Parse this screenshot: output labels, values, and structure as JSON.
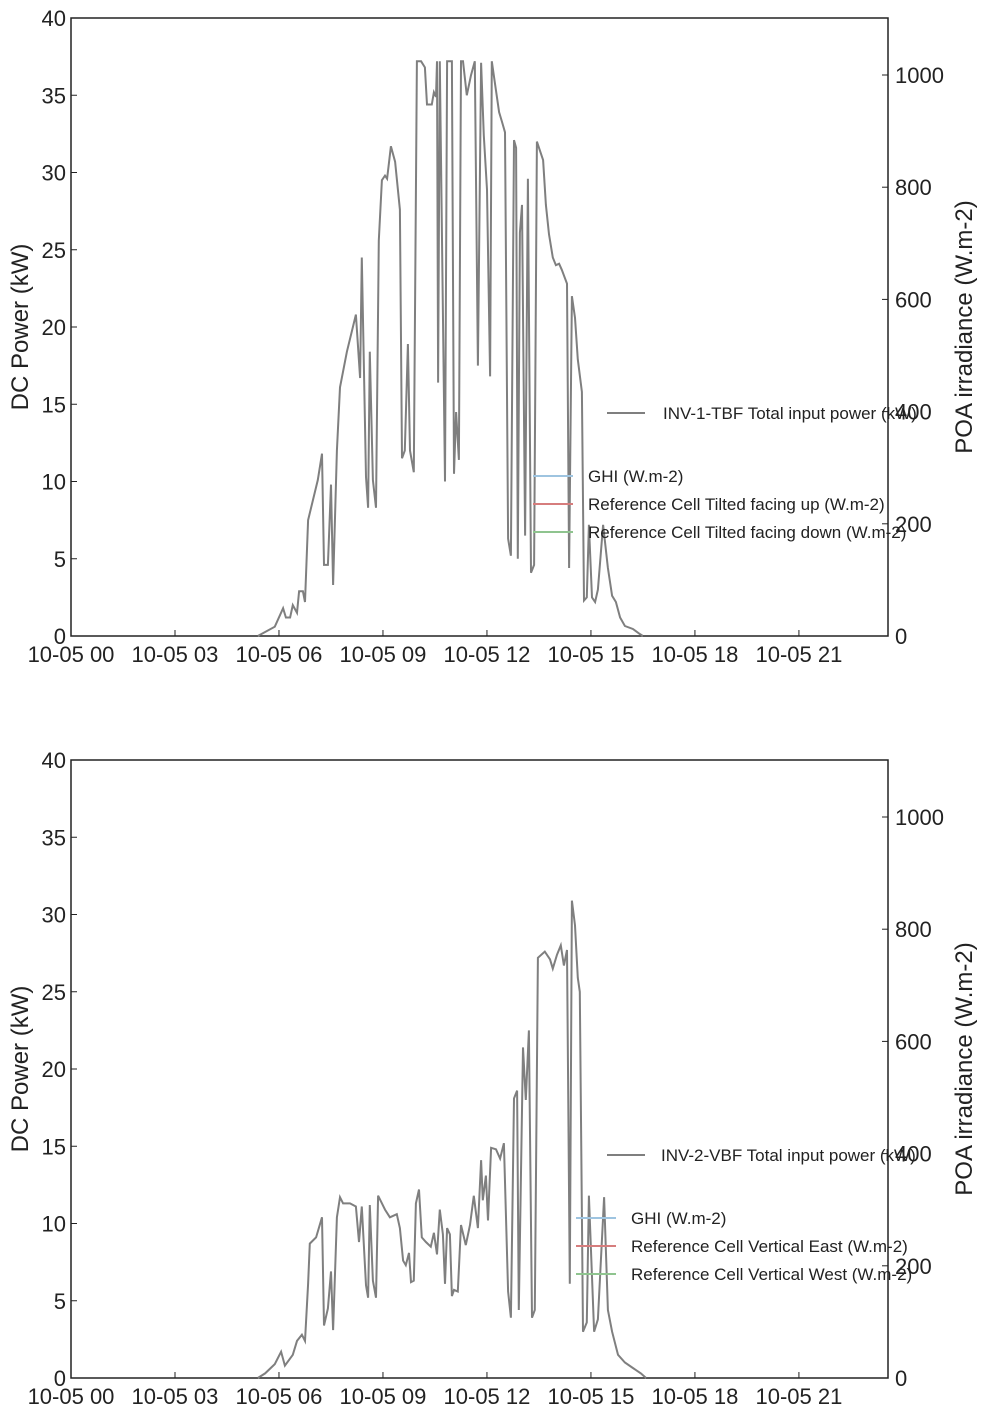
{
  "chart_data": [
    {
      "type": "line",
      "y_label": "DC Power (kW)",
      "y2_label": "POA irradiance (W.m-2)",
      "xlim": [
        0,
        23.57
      ],
      "ylim": [
        0,
        40
      ],
      "y2lim": [
        0,
        1101.6
      ],
      "xticks": [
        {
          "value": 0,
          "label": "10-05 00"
        },
        {
          "value": 3,
          "label": "10-05 03"
        },
        {
          "value": 6,
          "label": "10-05 06"
        },
        {
          "value": 9,
          "label": "10-05 09"
        },
        {
          "value": 12,
          "label": "10-05 12"
        },
        {
          "value": 15,
          "label": "10-05 15"
        },
        {
          "value": 18,
          "label": "10-05 18"
        },
        {
          "value": 21,
          "label": "10-05 21"
        }
      ],
      "yticks": [
        0,
        5,
        10,
        15,
        20,
        25,
        30,
        35,
        40
      ],
      "y2ticks": [
        0,
        200,
        400,
        600,
        800,
        1000
      ],
      "series": [
        {
          "name": "INV-1-TBF Total input power (kW)",
          "color": "#7f7f7f",
          "axis": "y",
          "x": [
            5.39,
            5.88,
            6.12,
            6.2,
            6.32,
            6.4,
            6.52,
            6.58,
            6.69,
            6.75,
            6.84,
            7.12,
            7.24,
            7.3,
            7.41,
            7.5,
            7.56,
            7.67,
            7.76,
            7.96,
            8.22,
            8.34,
            8.39,
            8.51,
            8.57,
            8.62,
            8.71,
            8.8,
            8.88,
            8.97,
            9.06,
            9.12,
            9.23,
            9.35,
            9.49,
            9.55,
            9.63,
            9.72,
            9.78,
            9.89,
            9.98,
            10.1,
            10.21,
            10.27,
            10.41,
            10.47,
            10.53,
            10.56,
            10.59,
            10.64,
            10.79,
            10.85,
            10.99,
            11.05,
            11.11,
            11.19,
            11.25,
            11.31,
            11.42,
            11.54,
            11.65,
            11.74,
            11.83,
            11.91,
            12.0,
            12.09,
            12.14,
            12.26,
            12.35,
            12.43,
            12.52,
            12.61,
            12.69,
            12.78,
            12.84,
            12.89,
            12.95,
            13.01,
            13.1,
            13.18,
            13.27,
            13.36,
            13.44,
            13.62,
            13.7,
            13.79,
            13.9,
            13.99,
            14.08,
            14.16,
            14.31,
            14.37,
            14.45,
            14.54,
            14.62,
            14.74,
            14.8,
            14.88,
            14.94,
            15.03,
            15.12,
            15.2,
            15.35,
            15.49,
            15.61,
            15.72,
            15.84,
            15.98,
            16.21,
            16.41,
            16.5
          ],
          "values": [
            0,
            0.6,
            1.8,
            1.2,
            1.2,
            2.0,
            1.5,
            2.9,
            2.9,
            2.2,
            7.5,
            10.1,
            11.8,
            4.6,
            4.6,
            9.8,
            3.3,
            12,
            16.1,
            18.4,
            20.8,
            16.7,
            24.5,
            10.3,
            8.3,
            18.4,
            10.1,
            8.3,
            25.6,
            29.5,
            29.8,
            29.6,
            31.7,
            30.7,
            27.6,
            11.5,
            12,
            18.9,
            12,
            10.6,
            37.2,
            37.2,
            36.8,
            34.4,
            34.4,
            35.2,
            34.9,
            37.2,
            16.4,
            37.2,
            10,
            37.2,
            37.2,
            10.5,
            14.5,
            11.4,
            37.2,
            37.2,
            35,
            36.3,
            37.2,
            17.5,
            37.1,
            32.4,
            28.9,
            16.8,
            37.2,
            35.3,
            33.9,
            33.3,
            32.6,
            6.3,
            5.2,
            32.1,
            31.6,
            5.0,
            26.1,
            27.9,
            6.5,
            29.6,
            4.1,
            4.6,
            32,
            30.8,
            27.9,
            26,
            24.5,
            24,
            24.1,
            23.7,
            22.8,
            4.4,
            22,
            20.6,
            17.9,
            15.8,
            2.3,
            2.5,
            7.2,
            2.5,
            2.2,
            3.0,
            7.2,
            4.4,
            2.6,
            2.2,
            1.2,
            0.65,
            0.45,
            0.13,
            0
          ]
        },
        {
          "name": "GHI (W.m-2)",
          "color": "#9ec4e0",
          "axis": "y2",
          "x": [],
          "values": []
        },
        {
          "name": "Reference Cell Tilted facing up (W.m-2)",
          "color": "#d67d7d",
          "axis": "y2",
          "x": [],
          "values": []
        },
        {
          "name": "Reference Cell Tilted facing down (W.m-2)",
          "color": "#8fc48f",
          "axis": "y2",
          "x": [],
          "values": []
        }
      ]
    },
    {
      "type": "line",
      "y_label": "DC Power (kW)",
      "y2_label": "POA irradiance (W.m-2)",
      "xlim": [
        0,
        23.57
      ],
      "ylim": [
        0,
        40
      ],
      "y2lim": [
        0,
        1101.6
      ],
      "xticks": [
        {
          "value": 0,
          "label": "10-05 00"
        },
        {
          "value": 3,
          "label": "10-05 03"
        },
        {
          "value": 6,
          "label": "10-05 06"
        },
        {
          "value": 9,
          "label": "10-05 09"
        },
        {
          "value": 12,
          "label": "10-05 12"
        },
        {
          "value": 15,
          "label": "10-05 15"
        },
        {
          "value": 18,
          "label": "10-05 18"
        },
        {
          "value": 21,
          "label": "10-05 21"
        }
      ],
      "yticks": [
        0,
        5,
        10,
        15,
        20,
        25,
        30,
        35,
        40
      ],
      "y2ticks": [
        0,
        200,
        400,
        600,
        800,
        1000
      ],
      "series": [
        {
          "name": "INV-2-VBF Total input power (kW)",
          "color": "#7f7f7f",
          "axis": "y",
          "x": [
            5.39,
            5.6,
            5.88,
            6.06,
            6.17,
            6.4,
            6.52,
            6.66,
            6.75,
            6.84,
            6.89,
            7.07,
            7.24,
            7.3,
            7.41,
            7.5,
            7.56,
            7.67,
            7.76,
            7.85,
            8.05,
            8.22,
            8.31,
            8.39,
            8.51,
            8.57,
            8.62,
            8.71,
            8.8,
            8.86,
            9.06,
            9.2,
            9.4,
            9.49,
            9.58,
            9.66,
            9.75,
            9.81,
            9.89,
            9.95,
            10.04,
            10.12,
            10.24,
            10.38,
            10.47,
            10.56,
            10.64,
            10.73,
            10.79,
            10.85,
            10.93,
            10.99,
            11.05,
            11.16,
            11.25,
            11.39,
            11.51,
            11.62,
            11.74,
            11.83,
            11.88,
            11.97,
            12.03,
            12.12,
            12.26,
            12.38,
            12.49,
            12.61,
            12.69,
            12.78,
            12.87,
            12.92,
            13.04,
            13.12,
            13.21,
            13.3,
            13.38,
            13.47,
            13.67,
            13.82,
            13.9,
            14.02,
            14.13,
            14.22,
            14.31,
            14.39,
            14.45,
            14.54,
            14.62,
            14.68,
            14.77,
            14.88,
            14.94,
            15.09,
            15.2,
            15.38,
            15.49,
            15.61,
            15.78,
            15.98,
            16.21,
            16.44,
            16.59
          ],
          "values": [
            0,
            0.3,
            0.9,
            1.7,
            0.8,
            1.5,
            2.4,
            2.8,
            2.4,
            6.1,
            8.7,
            9.1,
            10.4,
            3.4,
            4.5,
            6.9,
            3.1,
            10.4,
            11.7,
            11.3,
            11.3,
            11.1,
            8.8,
            11.1,
            6.0,
            5.2,
            11.2,
            6.3,
            5.2,
            11.8,
            10.9,
            10.4,
            10.6,
            9.7,
            7.6,
            7.3,
            8.1,
            6.2,
            6.3,
            11.3,
            12.2,
            9.1,
            8.8,
            8.5,
            9.4,
            8.0,
            10.9,
            9.3,
            6.1,
            9.7,
            9.3,
            5.3,
            5.7,
            5.6,
            9.9,
            8.6,
            9.9,
            11.8,
            9.7,
            14.1,
            11.5,
            13.1,
            10.2,
            14.9,
            14.8,
            14.2,
            15.2,
            5.6,
            3.9,
            18.1,
            18.6,
            4.4,
            21.4,
            18.0,
            22.5,
            3.9,
            4.4,
            27.2,
            27.6,
            27.1,
            26.5,
            27.4,
            28.0,
            26.7,
            27.7,
            6.1,
            30.9,
            29.3,
            25.9,
            25.0,
            3.0,
            3.6,
            11.8,
            3.0,
            3.8,
            11.7,
            4.4,
            3.0,
            1.5,
            1.0,
            0.65,
            0.3,
            0
          ]
        },
        {
          "name": "GHI (W.m-2)",
          "color": "#9ec4e0",
          "axis": "y2",
          "x": [],
          "values": []
        },
        {
          "name": "Reference Cell Vertical East (W.m-2)",
          "color": "#d67d7d",
          "axis": "y2",
          "x": [],
          "values": []
        },
        {
          "name": "Reference Cell Vertical West (W.m-2)",
          "color": "#8fc48f",
          "axis": "y2",
          "x": [],
          "values": []
        }
      ]
    }
  ]
}
